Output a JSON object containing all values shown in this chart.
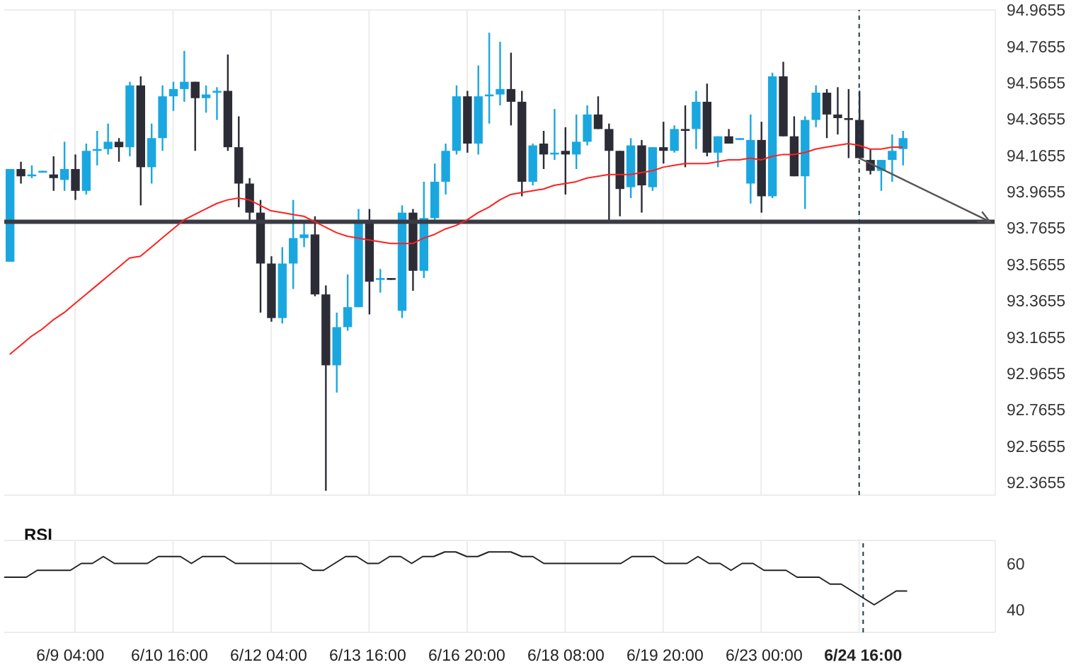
{
  "chart_data": [
    {
      "type": "candlestick",
      "categories": [
        null,
        null,
        null,
        null,
        null,
        null,
        "6/9 04:00",
        null,
        null,
        null,
        null,
        null,
        null,
        null,
        null,
        "6/10 16:00",
        null,
        null,
        null,
        null,
        null,
        null,
        null,
        null,
        "6/12 04:00",
        null,
        null,
        null,
        null,
        null,
        null,
        null,
        null,
        "6/13 16:00",
        null,
        null,
        null,
        null,
        null,
        null,
        null,
        null,
        "6/16 20:00",
        null,
        null,
        null,
        null,
        null,
        null,
        null,
        null,
        "6/18 08:00",
        null,
        null,
        null,
        null,
        null,
        null,
        null,
        null,
        "6/19 20:00",
        null,
        null,
        null,
        null,
        null,
        null,
        null,
        null,
        "6/23 00:00",
        null,
        null,
        null,
        null,
        null,
        null,
        null,
        null,
        "6/24 16:00",
        null,
        null,
        null,
        null,
        null,
        null,
        null,
        null,
        null,
        null,
        null,
        null
      ],
      "ohlc": [
        [
          93.58,
          94.09,
          93.58,
          94.09
        ],
        [
          94.09,
          94.13,
          94.01,
          94.05
        ],
        [
          94.05,
          94.11,
          94.04,
          94.06
        ],
        [
          94.07,
          94.08,
          94.07,
          94.08
        ],
        [
          94.06,
          94.16,
          93.97,
          94.04
        ],
        [
          94.03,
          94.24,
          93.97,
          94.09
        ],
        [
          94.09,
          94.17,
          93.92,
          93.97
        ],
        [
          93.97,
          94.23,
          93.95,
          94.19
        ],
        [
          94.19,
          94.3,
          94.11,
          94.2
        ],
        [
          94.2,
          94.34,
          94.17,
          94.24
        ],
        [
          94.24,
          94.26,
          94.13,
          94.21
        ],
        [
          94.21,
          94.57,
          94.16,
          94.55
        ],
        [
          94.55,
          94.6,
          93.89,
          94.1
        ],
        [
          94.1,
          94.34,
          94.01,
          94.26
        ],
        [
          94.26,
          94.55,
          94.19,
          94.49
        ],
        [
          94.49,
          94.57,
          94.41,
          94.53
        ],
        [
          94.53,
          94.74,
          94.46,
          94.57
        ],
        [
          94.57,
          94.57,
          94.19,
          94.48
        ],
        [
          94.48,
          94.55,
          94.4,
          94.5
        ],
        [
          94.51,
          94.54,
          94.36,
          94.52
        ],
        [
          94.52,
          94.72,
          94.19,
          94.21
        ],
        [
          94.21,
          94.38,
          93.88,
          94.01
        ],
        [
          94.01,
          94.04,
          93.79,
          93.85
        ],
        [
          93.85,
          93.92,
          93.3,
          93.57
        ],
        [
          93.57,
          93.61,
          93.25,
          93.27
        ],
        [
          93.27,
          93.66,
          93.24,
          93.57
        ],
        [
          93.57,
          93.92,
          93.43,
          93.71
        ],
        [
          93.71,
          93.8,
          93.66,
          93.73
        ],
        [
          93.73,
          93.83,
          93.39,
          93.4
        ],
        [
          93.4,
          93.45,
          92.32,
          93.01
        ],
        [
          93.01,
          93.3,
          92.86,
          93.22
        ],
        [
          93.22,
          93.51,
          93.2,
          93.33
        ],
        [
          93.33,
          93.87,
          93.33,
          93.79
        ],
        [
          93.79,
          93.87,
          93.29,
          93.47
        ],
        [
          93.48,
          93.54,
          93.41,
          93.49
        ],
        [
          93.49,
          93.49,
          93.48,
          93.48
        ],
        [
          93.31,
          93.89,
          93.27,
          93.85
        ],
        [
          93.85,
          93.87,
          93.42,
          93.53
        ],
        [
          93.53,
          94.02,
          93.49,
          93.82
        ],
        [
          93.82,
          94.12,
          93.81,
          94.02
        ],
        [
          94.02,
          94.23,
          93.95,
          94.19
        ],
        [
          94.19,
          94.55,
          94.17,
          94.49
        ],
        [
          94.49,
          94.52,
          94.18,
          94.23
        ],
        [
          94.23,
          94.66,
          94.17,
          94.49
        ],
        [
          94.49,
          94.84,
          94.34,
          94.5
        ],
        [
          94.5,
          94.79,
          94.44,
          94.53
        ],
        [
          94.53,
          94.73,
          94.33,
          94.46
        ],
        [
          94.46,
          94.52,
          93.94,
          94.02
        ],
        [
          94.02,
          94.23,
          94.0,
          94.22
        ],
        [
          94.23,
          94.3,
          94.09,
          94.17
        ],
        [
          94.17,
          94.42,
          94.14,
          94.18
        ],
        [
          94.19,
          94.32,
          93.95,
          94.17
        ],
        [
          94.17,
          94.39,
          94.09,
          94.24
        ],
        [
          94.24,
          94.44,
          94.22,
          94.39
        ],
        [
          94.39,
          94.49,
          94.31,
          94.31
        ],
        [
          94.31,
          94.34,
          93.81,
          94.19
        ],
        [
          94.19,
          94.19,
          93.83,
          93.98
        ],
        [
          93.99,
          94.26,
          93.93,
          94.22
        ],
        [
          94.22,
          94.25,
          93.85,
          94.0
        ],
        [
          93.99,
          94.21,
          93.97,
          94.21
        ],
        [
          94.21,
          94.35,
          94.12,
          94.19
        ],
        [
          94.19,
          94.33,
          94.18,
          94.31
        ],
        [
          94.31,
          94.44,
          94.1,
          94.3
        ],
        [
          94.31,
          94.52,
          94.2,
          94.46
        ],
        [
          94.46,
          94.56,
          94.16,
          94.18
        ],
        [
          94.18,
          94.27,
          94.1,
          94.27
        ],
        [
          94.27,
          94.31,
          94.23,
          94.23
        ],
        [
          94.25,
          94.26,
          94.25,
          94.26
        ],
        [
          94.01,
          94.39,
          93.9,
          94.25
        ],
        [
          94.25,
          94.35,
          93.85,
          93.94
        ],
        [
          93.94,
          94.62,
          93.93,
          94.6
        ],
        [
          94.6,
          94.68,
          94.27,
          94.27
        ],
        [
          94.27,
          94.38,
          94.05,
          94.05
        ],
        [
          94.05,
          94.38,
          93.87,
          94.36
        ],
        [
          94.36,
          94.55,
          94.32,
          94.51
        ],
        [
          94.51,
          94.53,
          94.26,
          94.39
        ],
        [
          94.39,
          94.54,
          94.28,
          94.37
        ],
        [
          94.37,
          94.53,
          94.15,
          94.36
        ],
        [
          94.36,
          94.52,
          94.15,
          94.15
        ],
        [
          94.14,
          94.2,
          94.06,
          94.08
        ],
        [
          94.08,
          94.14,
          93.97,
          94.14
        ],
        [
          94.14,
          94.28,
          94.02,
          94.19
        ],
        [
          94.2,
          94.3,
          94.11,
          94.26
        ],
        null,
        null,
        null,
        null,
        null,
        null,
        null,
        null
      ],
      "colors": [
        "#1aa7e0",
        "#2b2c36",
        "#1aa7e0",
        "#1aa7e0",
        "#2b2c36",
        "#1aa7e0",
        "#2b2c36",
        "#1aa7e0",
        "#1aa7e0",
        "#1aa7e0",
        "#2b2c36",
        "#1aa7e0",
        "#2b2c36",
        "#1aa7e0",
        "#1aa7e0",
        "#1aa7e0",
        "#1aa7e0",
        "#2b2c36",
        "#1aa7e0",
        "#1aa7e0",
        "#2b2c36",
        "#2b2c36",
        "#2b2c36",
        "#2b2c36",
        "#2b2c36",
        "#1aa7e0",
        "#1aa7e0",
        "#1aa7e0",
        "#2b2c36",
        "#2b2c36",
        "#1aa7e0",
        "#1aa7e0",
        "#1aa7e0",
        "#2b2c36",
        "#1aa7e0",
        "#2b2c36",
        "#1aa7e0",
        "#2b2c36",
        "#1aa7e0",
        "#1aa7e0",
        "#1aa7e0",
        "#1aa7e0",
        "#2b2c36",
        "#1aa7e0",
        "#1aa7e0",
        "#1aa7e0",
        "#2b2c36",
        "#2b2c36",
        "#1aa7e0",
        "#2b2c36",
        "#1aa7e0",
        "#2b2c36",
        "#1aa7e0",
        "#1aa7e0",
        "#2b2c36",
        "#2b2c36",
        "#2b2c36",
        "#1aa7e0",
        "#2b2c36",
        "#1aa7e0",
        "#2b2c36",
        "#1aa7e0",
        "#2b2c36",
        "#1aa7e0",
        "#2b2c36",
        "#1aa7e0",
        "#2b2c36",
        "#1aa7e0",
        "#1aa7e0",
        "#2b2c36",
        "#1aa7e0",
        "#2b2c36",
        "#2b2c36",
        "#1aa7e0",
        "#1aa7e0",
        "#2b2c36",
        "#2b2c36",
        "#2b2c36",
        "#2b2c36",
        "#2b2c36",
        "#1aa7e0",
        "#1aa7e0",
        "#1aa7e0",
        null,
        null,
        null,
        null,
        null,
        null,
        null,
        null
      ],
      "series": [
        {
          "type": "line",
          "color": "#ff2020",
          "values": [
            93.07,
            93.12,
            93.17,
            93.21,
            93.26,
            93.3,
            93.35,
            93.4,
            93.45,
            93.5,
            93.55,
            93.6,
            93.61,
            93.66,
            93.71,
            93.76,
            93.81,
            93.84,
            93.87,
            93.9,
            93.92,
            93.93,
            93.92,
            93.89,
            93.86,
            93.85,
            93.84,
            93.83,
            93.8,
            93.77,
            93.74,
            93.72,
            93.71,
            93.7,
            93.69,
            93.68,
            93.68,
            93.68,
            93.71,
            93.73,
            93.76,
            93.78,
            93.81,
            93.85,
            93.88,
            93.92,
            93.95,
            93.96,
            93.97,
            93.98,
            94.0,
            94.01,
            94.02,
            94.04,
            94.05,
            94.06,
            94.06,
            94.06,
            94.07,
            94.08,
            94.1,
            94.11,
            94.12,
            94.12,
            94.12,
            94.13,
            94.14,
            94.14,
            94.15,
            94.14,
            94.16,
            94.17,
            94.17,
            94.18,
            94.2,
            94.21,
            94.22,
            94.23,
            94.22,
            94.2,
            94.2,
            94.21,
            94.21,
            null,
            null,
            null,
            null,
            null,
            null,
            null,
            null
          ]
        }
      ],
      "ylim": [
        92.2955,
        94.9655
      ],
      "yticks": [
        94.9655,
        94.7655,
        94.5655,
        94.3655,
        94.1655,
        93.9655,
        93.7655,
        93.5655,
        93.3655,
        93.1655,
        92.9655,
        92.7655,
        92.5655,
        92.3655
      ],
      "grid": true,
      "tick_labels": "y",
      "ref_lines": [
        {
          "axis": "y",
          "value": 93.8,
          "color": "#3a3b44"
        },
        {
          "axis": "x",
          "value": "6/24 16:00",
          "color": "#1d3d4a",
          "line_style": "dashed"
        }
      ]
    },
    {
      "type": "line",
      "title": "RSI",
      "categories": [
        null,
        null,
        null,
        null,
        null,
        null,
        "6/9 04:00",
        null,
        null,
        null,
        null,
        null,
        null,
        null,
        null,
        "6/10 16:00",
        null,
        null,
        null,
        null,
        null,
        null,
        null,
        null,
        "6/12 04:00",
        null,
        null,
        null,
        null,
        null,
        null,
        null,
        null,
        "6/13 16:00",
        null,
        null,
        null,
        null,
        null,
        null,
        null,
        null,
        "6/16 20:00",
        null,
        null,
        null,
        null,
        null,
        null,
        null,
        null,
        "6/18 08:00",
        null,
        null,
        null,
        null,
        null,
        null,
        null,
        null,
        "6/19 20:00",
        null,
        null,
        null,
        null,
        null,
        null,
        null,
        null,
        "6/23 00:00",
        null,
        null,
        null,
        null,
        null,
        null,
        null,
        null,
        "6/24 16:00",
        null,
        null,
        null,
        null,
        null,
        null,
        null,
        null,
        null,
        null,
        null,
        null
      ],
      "series": [
        {
          "color": "#222222",
          "values": [
            54,
            54,
            54,
            57,
            57,
            57,
            57,
            60,
            60,
            63,
            60,
            60,
            60,
            60,
            63,
            63,
            63,
            60,
            63,
            63,
            63,
            60,
            60,
            60,
            60,
            60,
            60,
            60,
            57,
            57,
            60,
            63,
            63,
            60,
            60,
            63,
            63,
            60,
            63,
            63,
            65,
            65,
            63,
            63,
            65,
            65,
            65,
            63,
            63,
            60,
            60,
            60,
            60,
            60,
            60,
            60,
            60,
            63,
            63,
            63,
            60,
            60,
            60,
            63,
            60,
            60,
            57,
            60,
            60,
            57,
            57,
            57,
            54,
            54,
            54,
            51,
            51,
            48,
            45,
            42,
            45,
            48,
            48,
            null,
            null,
            null,
            null,
            null,
            null,
            null,
            null
          ]
        }
      ],
      "ylim": [
        30,
        70
      ],
      "yticks": [
        40,
        60
      ],
      "grid": true,
      "ref_lines": [
        {
          "axis": "x",
          "value": "6/24 16:00",
          "color": "#1d3d4a",
          "line_style": "dashed"
        }
      ]
    }
  ]
}
